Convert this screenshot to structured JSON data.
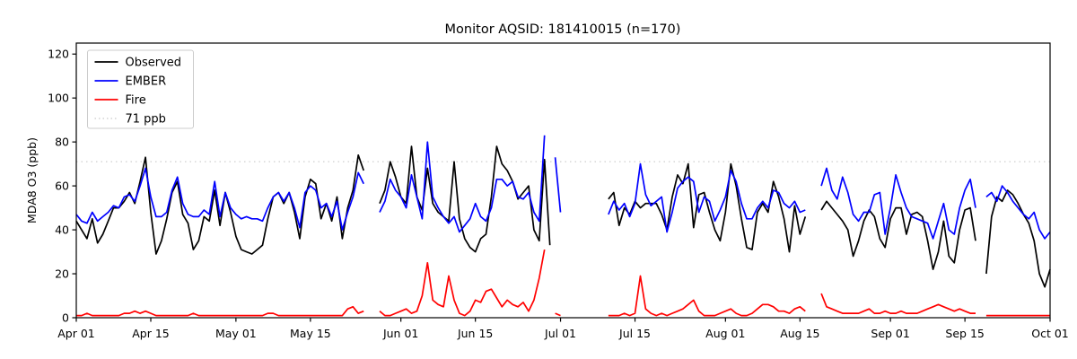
{
  "figure": {
    "title": "Monitor AQSID: 181410015 (n=170)",
    "ylabel": "MDA8 O3 (ppb)"
  },
  "legend": {
    "entries": [
      {
        "label": "Observed",
        "color": "#000000",
        "style": "solid"
      },
      {
        "label": "EMBER",
        "color": "#0000ff",
        "style": "solid"
      },
      {
        "label": "Fire",
        "color": "#ff0000",
        "style": "solid"
      },
      {
        "label": "71 ppb",
        "color": "#d3d3d3",
        "style": "dotted"
      }
    ]
  },
  "chart_data": {
    "type": "line",
    "title": "Monitor AQSID: 181410015 (n=170)",
    "xlabel": "",
    "ylabel": "MDA8 O3 (ppb)",
    "grid": false,
    "legend_position": "upper left",
    "ylim": [
      0,
      125
    ],
    "yticks": [
      0,
      20,
      40,
      60,
      80,
      100,
      120
    ],
    "x_unit": "days since Apr 01",
    "xlim": [
      0,
      183
    ],
    "xticks": {
      "positions": [
        0,
        14,
        30,
        44,
        61,
        75,
        91,
        105,
        122,
        136,
        153,
        167,
        183
      ],
      "labels": [
        "Apr 01",
        "Apr 15",
        "May 01",
        "May 15",
        "Jun 01",
        "Jun 15",
        "Jul 01",
        "Jul 15",
        "Aug 01",
        "Aug 15",
        "Sep 01",
        "Sep 15",
        "Oct 01"
      ]
    },
    "threshold": {
      "value": 71,
      "label": "71 ppb",
      "color": "#d3d3d3",
      "linestyle": "dotted"
    },
    "series": [
      {
        "name": "Observed",
        "color": "#000000",
        "values": [
          44,
          40,
          36,
          45,
          34,
          38,
          44,
          50,
          50,
          53,
          57,
          52,
          62,
          73,
          48,
          29,
          35,
          45,
          57,
          62,
          47,
          43,
          31,
          35,
          46,
          44,
          58,
          42,
          57,
          48,
          37,
          31,
          30,
          29,
          31,
          33,
          45,
          55,
          57,
          52,
          57,
          48,
          36,
          55,
          63,
          61,
          45,
          52,
          44,
          55,
          36,
          50,
          58,
          74,
          67,
          null,
          null,
          52,
          58,
          71,
          64,
          55,
          52,
          78,
          55,
          49,
          68,
          52,
          48,
          46,
          44,
          71,
          45,
          36,
          32,
          30,
          36,
          38,
          55,
          78,
          70,
          67,
          62,
          54,
          57,
          60,
          40,
          35,
          72,
          33,
          null,
          null,
          null,
          null,
          null,
          null,
          null,
          null,
          null,
          null,
          54,
          57,
          42,
          50,
          47,
          53,
          50,
          52,
          52,
          52,
          47,
          40,
          55,
          65,
          61,
          70,
          41,
          56,
          57,
          48,
          40,
          35,
          48,
          70,
          60,
          45,
          32,
          31,
          48,
          52,
          48,
          62,
          55,
          45,
          30,
          51,
          38,
          46,
          null,
          null,
          49,
          53,
          50,
          47,
          44,
          40,
          28,
          35,
          44,
          49,
          46,
          36,
          32,
          45,
          50,
          50,
          38,
          47,
          48,
          46,
          35,
          22,
          30,
          44,
          28,
          25,
          40,
          49,
          50,
          35,
          null,
          20,
          46,
          55,
          53,
          58,
          56,
          52,
          47,
          43,
          35,
          20,
          14,
          22
        ]
      },
      {
        "name": "EMBER",
        "color": "#0000ff",
        "values": [
          47,
          44,
          43,
          48,
          44,
          46,
          48,
          51,
          50,
          55,
          56,
          53,
          60,
          68,
          55,
          46,
          46,
          48,
          58,
          64,
          52,
          47,
          46,
          46,
          49,
          47,
          62,
          46,
          57,
          50,
          47,
          45,
          46,
          45,
          45,
          44,
          50,
          55,
          57,
          53,
          57,
          50,
          41,
          57,
          60,
          58,
          50,
          52,
          46,
          53,
          40,
          48,
          55,
          66,
          61,
          null,
          null,
          48,
          53,
          63,
          58,
          55,
          50,
          65,
          55,
          45,
          80,
          55,
          50,
          46,
          43,
          46,
          39,
          42,
          45,
          52,
          46,
          44,
          50,
          63,
          63,
          60,
          62,
          55,
          54,
          57,
          48,
          44,
          83,
          null,
          73,
          48,
          null,
          null,
          null,
          null,
          null,
          null,
          null,
          null,
          47,
          53,
          49,
          52,
          46,
          52,
          70,
          56,
          51,
          53,
          55,
          39,
          48,
          59,
          62,
          64,
          62,
          48,
          55,
          53,
          44,
          49,
          55,
          67,
          62,
          52,
          45,
          45,
          50,
          53,
          50,
          58,
          57,
          52,
          50,
          53,
          48,
          49,
          null,
          null,
          60,
          68,
          58,
          54,
          64,
          57,
          47,
          44,
          48,
          48,
          56,
          57,
          38,
          50,
          65,
          57,
          50,
          46,
          45,
          44,
          43,
          36,
          44,
          52,
          40,
          38,
          50,
          58,
          63,
          50,
          null,
          55,
          57,
          53,
          60,
          57,
          53,
          50,
          47,
          45,
          48,
          40,
          36,
          39
        ]
      },
      {
        "name": "Fire",
        "color": "#ff0000",
        "values": [
          1,
          1,
          2,
          1,
          1,
          1,
          1,
          1,
          1,
          2,
          2,
          3,
          2,
          3,
          2,
          1,
          1,
          1,
          1,
          1,
          1,
          1,
          2,
          1,
          1,
          1,
          1,
          1,
          1,
          1,
          1,
          1,
          1,
          1,
          1,
          1,
          2,
          2,
          1,
          1,
          1,
          1,
          1,
          1,
          1,
          1,
          1,
          1,
          1,
          1,
          1,
          4,
          5,
          2,
          3,
          null,
          null,
          3,
          1,
          1,
          2,
          3,
          4,
          2,
          3,
          10,
          25,
          8,
          6,
          5,
          19,
          8,
          2,
          1,
          3,
          8,
          7,
          12,
          13,
          9,
          5,
          8,
          6,
          5,
          7,
          3,
          8,
          18,
          31,
          null,
          2,
          1,
          null,
          null,
          null,
          null,
          null,
          null,
          null,
          null,
          1,
          1,
          1,
          2,
          1,
          2,
          19,
          4,
          2,
          1,
          2,
          1,
          2,
          3,
          4,
          6,
          8,
          3,
          1,
          1,
          1,
          2,
          3,
          4,
          2,
          1,
          1,
          2,
          4,
          6,
          6,
          5,
          3,
          3,
          2,
          4,
          5,
          3,
          null,
          null,
          11,
          5,
          4,
          3,
          2,
          2,
          2,
          2,
          3,
          4,
          2,
          2,
          3,
          2,
          2,
          3,
          2,
          2,
          2,
          3,
          4,
          5,
          6,
          5,
          4,
          3,
          4,
          3,
          2,
          2,
          null,
          1,
          1,
          1,
          1,
          1,
          1,
          1,
          1,
          1,
          1,
          1,
          1,
          1
        ]
      }
    ]
  }
}
